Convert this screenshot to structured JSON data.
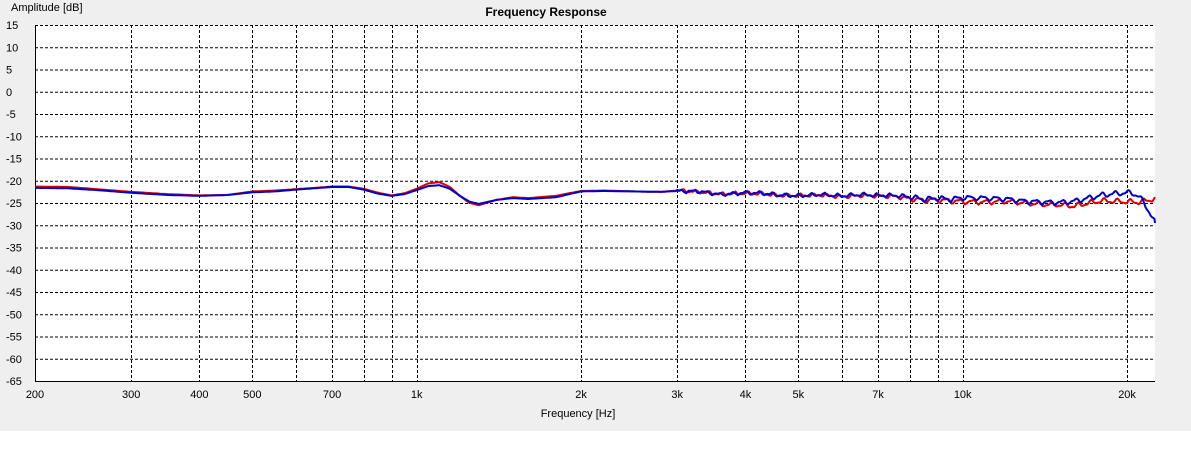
{
  "chart_data": {
    "type": "line",
    "title": "Frequency Response",
    "xlabel": "Frequency [Hz]",
    "ylabel": "Amplitude [dB]",
    "x_scale": "log",
    "xlim": [
      200,
      22500
    ],
    "ylim": [
      -65,
      15
    ],
    "x_ticks": [
      {
        "value": 200,
        "label": "200"
      },
      {
        "value": 300,
        "label": "300"
      },
      {
        "value": 400,
        "label": "400"
      },
      {
        "value": 500,
        "label": "500"
      },
      {
        "value": 700,
        "label": "700"
      },
      {
        "value": 1000,
        "label": "1k"
      },
      {
        "value": 2000,
        "label": "2k"
      },
      {
        "value": 3000,
        "label": "3k"
      },
      {
        "value": 4000,
        "label": "4k"
      },
      {
        "value": 5000,
        "label": "5k"
      },
      {
        "value": 7000,
        "label": "7k"
      },
      {
        "value": 10000,
        "label": "10k"
      },
      {
        "value": 20000,
        "label": "20k"
      }
    ],
    "x_grid": [
      200,
      300,
      400,
      500,
      600,
      700,
      800,
      900,
      1000,
      2000,
      3000,
      4000,
      5000,
      6000,
      7000,
      8000,
      9000,
      10000,
      20000
    ],
    "y_ticks": [
      15,
      10,
      5,
      0,
      -5,
      -10,
      -15,
      -20,
      -25,
      -30,
      -35,
      -40,
      -45,
      -50,
      -55,
      -60,
      -65
    ],
    "grid": true,
    "series": [
      {
        "color": "#dd0000",
        "x": [
          200,
          230,
          260,
          300,
          350,
          400,
          450,
          500,
          550,
          600,
          650,
          700,
          750,
          800,
          850,
          900,
          950,
          1000,
          1050,
          1100,
          1150,
          1200,
          1250,
          1300,
          1400,
          1500,
          1600,
          1800,
          2000,
          2200,
          2500,
          2800,
          3000,
          3300,
          3600,
          4000,
          4300,
          4600,
          5000,
          5500,
          6000,
          6500,
          7000,
          7500,
          8000,
          8500,
          9000,
          9500,
          10000,
          11000,
          12000,
          13000,
          14000,
          15000,
          16000,
          17000,
          18000,
          19000,
          20000,
          21000,
          22000,
          22500
        ],
        "y": [
          -21.3,
          -21.4,
          -21.9,
          -22.5,
          -23.0,
          -23.3,
          -23.2,
          -22.4,
          -22.2,
          -21.9,
          -21.6,
          -21.3,
          -21.3,
          -21.8,
          -22.7,
          -23.3,
          -22.8,
          -21.8,
          -20.6,
          -20.3,
          -21.4,
          -23.4,
          -25.0,
          -25.5,
          -24.3,
          -23.7,
          -23.9,
          -23.4,
          -22.3,
          -22.2,
          -22.4,
          -22.5,
          -22.2,
          -22.5,
          -23.0,
          -22.8,
          -22.9,
          -23.3,
          -23.3,
          -23.2,
          -23.6,
          -23.3,
          -23.4,
          -23.5,
          -24.0,
          -24.4,
          -24.3,
          -24.5,
          -24.7,
          -24.8,
          -24.6,
          -25.0,
          -25.3,
          -25.4,
          -25.7,
          -25.0,
          -24.5,
          -24.6,
          -24.7,
          -24.8,
          -24.3,
          -24.0
        ]
      },
      {
        "color": "#0000cc",
        "x": [
          200,
          230,
          260,
          300,
          350,
          400,
          450,
          500,
          550,
          600,
          650,
          700,
          750,
          800,
          850,
          900,
          950,
          1000,
          1050,
          1100,
          1150,
          1200,
          1250,
          1300,
          1400,
          1500,
          1600,
          1800,
          2000,
          2200,
          2500,
          2800,
          3000,
          3300,
          3600,
          4000,
          4300,
          4600,
          5000,
          5500,
          6000,
          6500,
          7000,
          7500,
          8000,
          8500,
          9000,
          9500,
          10000,
          11000,
          12000,
          13000,
          14000,
          15000,
          16000,
          17000,
          18000,
          19000,
          20000,
          20500,
          21000,
          21500,
          22000,
          22500
        ],
        "y": [
          -21.6,
          -21.7,
          -22.1,
          -22.7,
          -23.2,
          -23.4,
          -23.2,
          -22.6,
          -22.4,
          -22.0,
          -21.7,
          -21.4,
          -21.4,
          -22.0,
          -22.9,
          -23.4,
          -23.0,
          -22.1,
          -21.2,
          -21.0,
          -21.8,
          -23.4,
          -24.7,
          -25.2,
          -24.3,
          -23.9,
          -24.1,
          -23.7,
          -22.4,
          -22.3,
          -22.4,
          -22.5,
          -22.3,
          -22.4,
          -23.1,
          -22.7,
          -22.8,
          -23.2,
          -23.4,
          -23.1,
          -23.4,
          -23.1,
          -23.3,
          -23.3,
          -23.6,
          -24.2,
          -23.9,
          -24.2,
          -23.8,
          -23.9,
          -24.1,
          -24.6,
          -24.8,
          -24.9,
          -24.6,
          -23.9,
          -23.2,
          -22.9,
          -22.7,
          -22.8,
          -23.5,
          -25.0,
          -27.2,
          -29.5
        ]
      }
    ]
  }
}
